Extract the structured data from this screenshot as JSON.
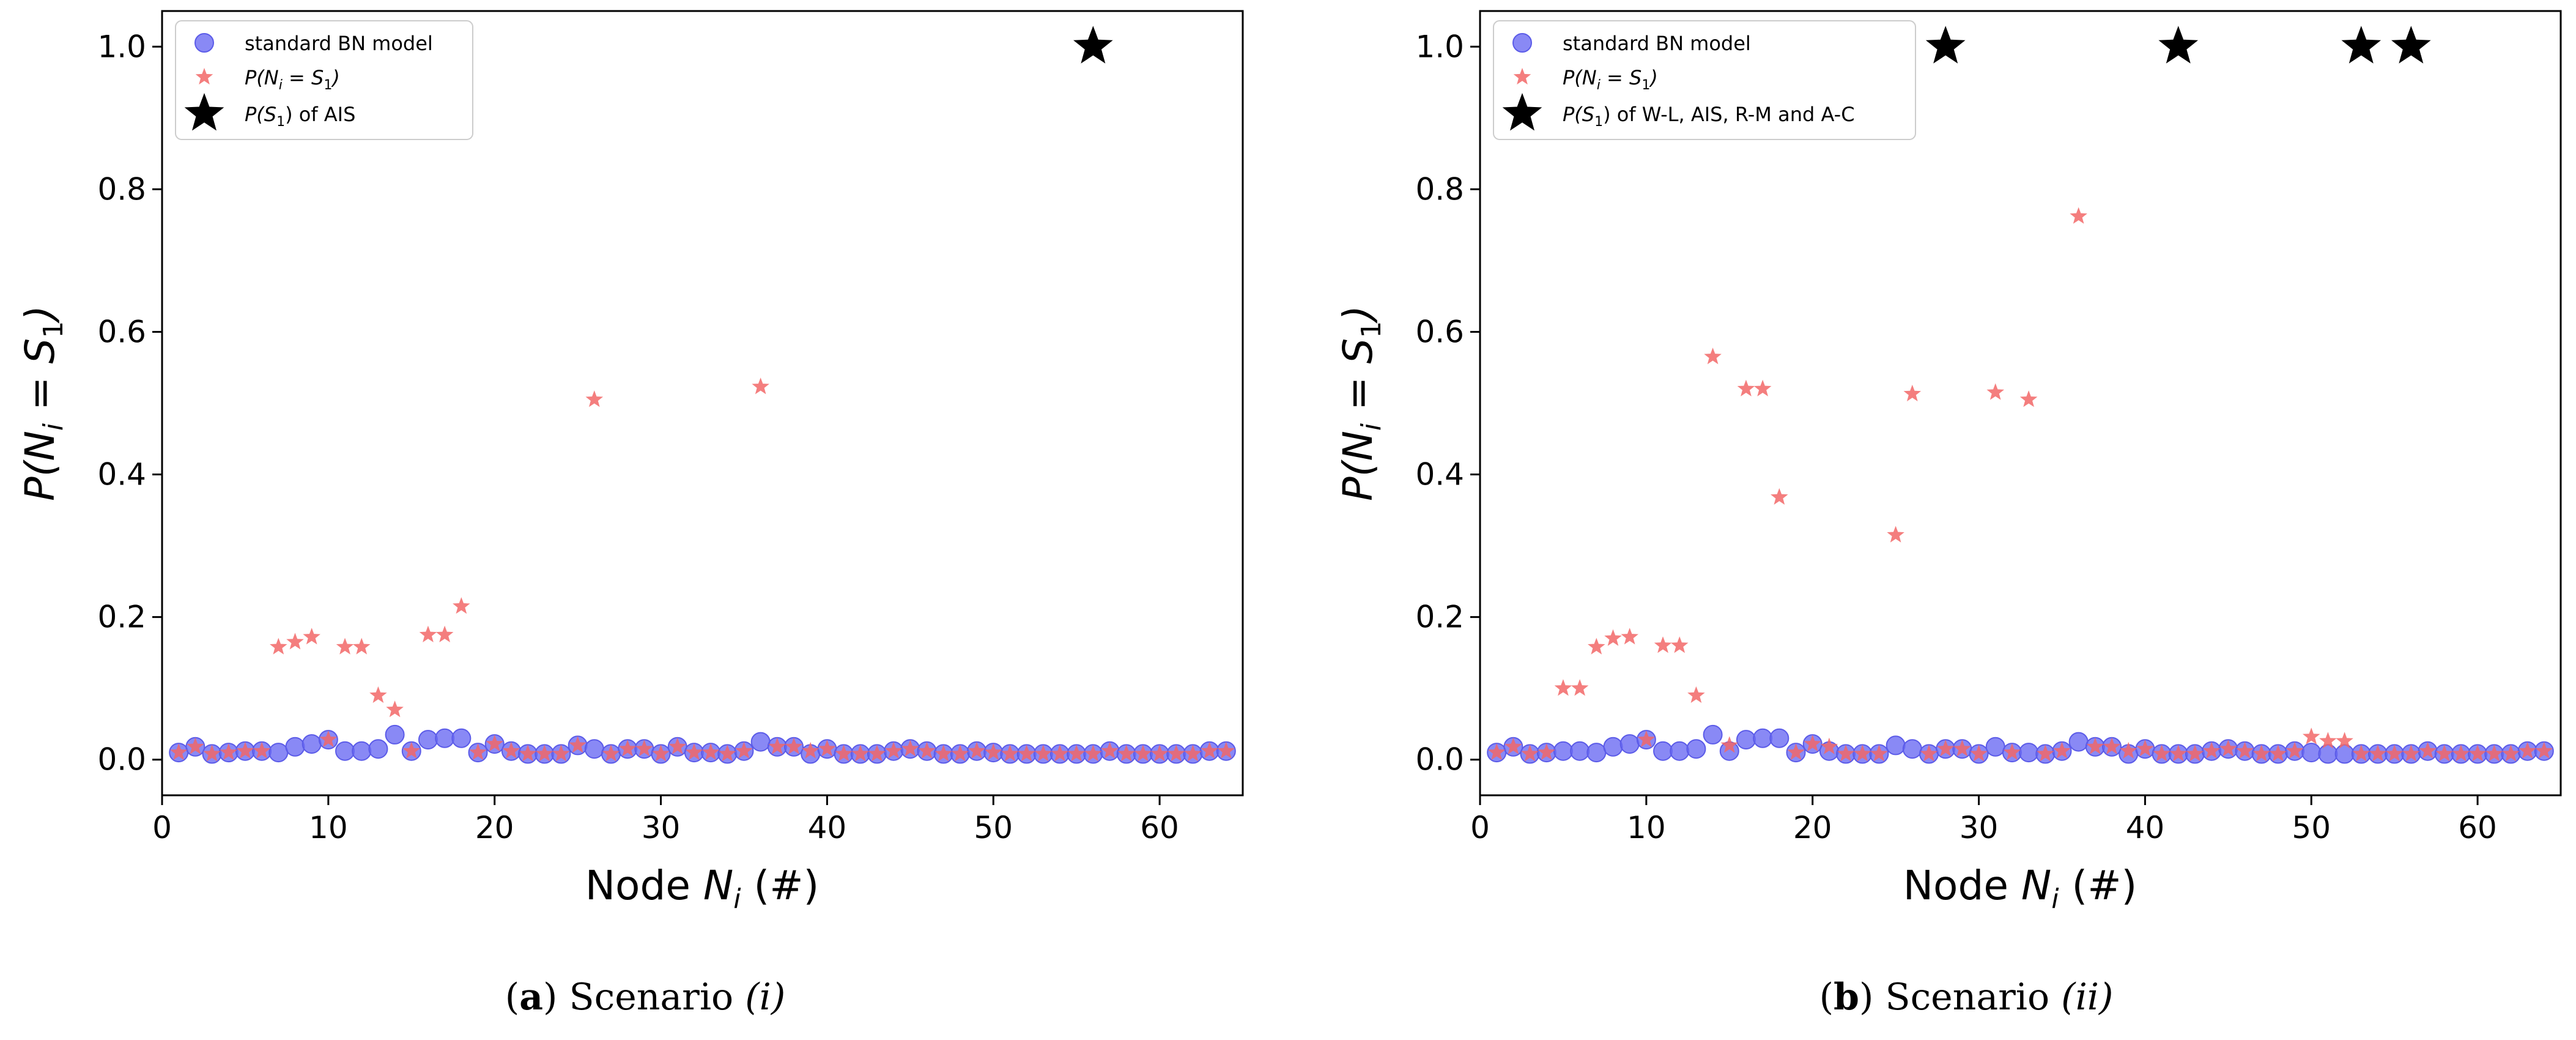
{
  "colors": {
    "blue": "#6b6bf2",
    "blue_edge": "#5b5be8",
    "red": "#f26767",
    "black": "#000000"
  },
  "icons": {
    "circle": "blue-circle-marker",
    "star_small": "red-star-marker",
    "star_big": "black-star-marker"
  },
  "chart_data": [
    {
      "type": "scatter",
      "title": "",
      "xlabel_prefix": "Node ",
      "xlabel_var": "N",
      "xlabel_sub": "i",
      "xlabel_suffix": " (#)",
      "ylabel_prefix": "P(",
      "ylabel_var": "N",
      "ylabel_sub": "i",
      "ylabel_eq": " = ",
      "ylabel_s": "S",
      "ylabel_s_sub": "1",
      "ylabel_close": ")",
      "xlim": [
        0,
        65
      ],
      "ylim": [
        -0.05,
        1.05
      ],
      "xticks": [
        0,
        10,
        20,
        30,
        40,
        50,
        60
      ],
      "xtick_labels": [
        "0",
        "10",
        "20",
        "30",
        "40",
        "50",
        "60"
      ],
      "yticks": [
        0.0,
        0.2,
        0.4,
        0.6,
        0.8,
        1.0
      ],
      "ytick_labels": [
        "0.0",
        "0.2",
        "0.4",
        "0.6",
        "0.8",
        "1.0"
      ],
      "legend_position": "top-left",
      "legend": {
        "entry1": "standard BN model",
        "entry2_prefix": "P(",
        "entry2_var": "N",
        "entry2_sub": "i",
        "entry2_mid": " = ",
        "entry2_s": "S",
        "entry2_s_sub": "1",
        "entry2_close": ")",
        "entry3_prefix": "P(",
        "entry3_s": "S",
        "entry3_s_sub": "1",
        "entry3_rest": ") of AIS"
      },
      "caption": {
        "letter": "a",
        "text": "Scenario ",
        "italic": "(i)"
      },
      "series": [
        {
          "name": "standard BN model",
          "marker": "circle",
          "x": [
            1,
            2,
            3,
            4,
            5,
            6,
            7,
            8,
            9,
            10,
            11,
            12,
            13,
            14,
            15,
            16,
            17,
            18,
            19,
            20,
            21,
            22,
            23,
            24,
            25,
            26,
            27,
            28,
            29,
            30,
            31,
            32,
            33,
            34,
            35,
            36,
            37,
            38,
            39,
            40,
            41,
            42,
            43,
            44,
            45,
            46,
            47,
            48,
            49,
            50,
            51,
            52,
            53,
            54,
            55,
            56,
            57,
            58,
            59,
            60,
            61,
            62,
            63,
            64
          ],
          "y": [
            0.01,
            0.018,
            0.008,
            0.01,
            0.012,
            0.012,
            0.01,
            0.018,
            0.022,
            0.028,
            0.012,
            0.012,
            0.015,
            0.035,
            0.012,
            0.028,
            0.03,
            0.03,
            0.01,
            0.022,
            0.012,
            0.008,
            0.008,
            0.008,
            0.02,
            0.015,
            0.008,
            0.015,
            0.015,
            0.008,
            0.018,
            0.01,
            0.01,
            0.008,
            0.012,
            0.025,
            0.018,
            0.018,
            0.008,
            0.015,
            0.008,
            0.008,
            0.008,
            0.012,
            0.015,
            0.012,
            0.008,
            0.008,
            0.012,
            0.01,
            0.008,
            0.008,
            0.008,
            0.008,
            0.008,
            0.008,
            0.012,
            0.008,
            0.008,
            0.008,
            0.008,
            0.008,
            0.012,
            0.012
          ]
        },
        {
          "name": "P(Ni = S1)",
          "marker": "star",
          "x": [
            1,
            2,
            3,
            4,
            5,
            6,
            7,
            8,
            9,
            10,
            11,
            12,
            13,
            14,
            15,
            16,
            17,
            18,
            19,
            20,
            21,
            22,
            23,
            24,
            25,
            26,
            27,
            28,
            29,
            30,
            31,
            32,
            33,
            34,
            35,
            36,
            37,
            38,
            39,
            40,
            41,
            42,
            43,
            44,
            45,
            46,
            47,
            48,
            49,
            50,
            51,
            52,
            53,
            54,
            55,
            56,
            57,
            58,
            59,
            60,
            61,
            62,
            63,
            64
          ],
          "y": [
            0.01,
            0.018,
            0.008,
            0.01,
            0.012,
            0.012,
            0.158,
            0.165,
            0.172,
            0.028,
            0.158,
            0.158,
            0.09,
            0.07,
            0.012,
            0.175,
            0.175,
            0.215,
            0.01,
            0.022,
            0.012,
            0.008,
            0.008,
            0.008,
            0.02,
            0.505,
            0.008,
            0.015,
            0.015,
            0.008,
            0.018,
            0.01,
            0.01,
            0.008,
            0.012,
            0.523,
            0.018,
            0.018,
            0.012,
            0.015,
            0.008,
            0.008,
            0.008,
            0.012,
            0.015,
            0.012,
            0.008,
            0.008,
            0.012,
            0.01,
            0.008,
            0.008,
            0.008,
            0.008,
            0.008,
            0.008,
            0.012,
            0.008,
            0.008,
            0.008,
            0.008,
            0.008,
            0.012,
            0.012
          ]
        },
        {
          "name": "P(S1) of AIS",
          "marker": "bigstar",
          "x": [
            56
          ],
          "y": [
            1.0
          ]
        }
      ]
    },
    {
      "type": "scatter",
      "title": "",
      "xlabel_prefix": "Node ",
      "xlabel_var": "N",
      "xlabel_sub": "i",
      "xlabel_suffix": " (#)",
      "ylabel_prefix": "P(",
      "ylabel_var": "N",
      "ylabel_sub": "i",
      "ylabel_eq": " = ",
      "ylabel_s": "S",
      "ylabel_s_sub": "1",
      "ylabel_close": ")",
      "xlim": [
        0,
        65
      ],
      "ylim": [
        -0.05,
        1.05
      ],
      "xticks": [
        0,
        10,
        20,
        30,
        40,
        50,
        60
      ],
      "xtick_labels": [
        "0",
        "10",
        "20",
        "30",
        "40",
        "50",
        "60"
      ],
      "yticks": [
        0.0,
        0.2,
        0.4,
        0.6,
        0.8,
        1.0
      ],
      "ytick_labels": [
        "0.0",
        "0.2",
        "0.4",
        "0.6",
        "0.8",
        "1.0"
      ],
      "legend_position": "top-left",
      "legend": {
        "entry1": "standard BN model",
        "entry2_prefix": "P(",
        "entry2_var": "N",
        "entry2_sub": "i",
        "entry2_mid": " = ",
        "entry2_s": "S",
        "entry2_s_sub": "1",
        "entry2_close": ")",
        "entry3_prefix": "P(",
        "entry3_s": "S",
        "entry3_s_sub": "1",
        "entry3_rest": ") of W-L, AIS, R-M and A-C"
      },
      "caption": {
        "letter": "b",
        "text": "Scenario ",
        "italic": "(ii)"
      },
      "series": [
        {
          "name": "standard BN model",
          "marker": "circle",
          "x": [
            1,
            2,
            3,
            4,
            5,
            6,
            7,
            8,
            9,
            10,
            11,
            12,
            13,
            14,
            15,
            16,
            17,
            18,
            19,
            20,
            21,
            22,
            23,
            24,
            25,
            26,
            27,
            28,
            29,
            30,
            31,
            32,
            33,
            34,
            35,
            36,
            37,
            38,
            39,
            40,
            41,
            42,
            43,
            44,
            45,
            46,
            47,
            48,
            49,
            50,
            51,
            52,
            53,
            54,
            55,
            56,
            57,
            58,
            59,
            60,
            61,
            62,
            63,
            64
          ],
          "y": [
            0.01,
            0.018,
            0.008,
            0.01,
            0.012,
            0.012,
            0.01,
            0.018,
            0.022,
            0.028,
            0.012,
            0.012,
            0.015,
            0.035,
            0.012,
            0.028,
            0.03,
            0.03,
            0.01,
            0.022,
            0.012,
            0.008,
            0.008,
            0.008,
            0.02,
            0.015,
            0.008,
            0.015,
            0.015,
            0.008,
            0.018,
            0.01,
            0.01,
            0.008,
            0.012,
            0.025,
            0.018,
            0.018,
            0.008,
            0.015,
            0.008,
            0.008,
            0.008,
            0.012,
            0.015,
            0.012,
            0.008,
            0.008,
            0.012,
            0.01,
            0.008,
            0.008,
            0.008,
            0.008,
            0.008,
            0.008,
            0.012,
            0.008,
            0.008,
            0.008,
            0.008,
            0.008,
            0.012,
            0.012
          ]
        },
        {
          "name": "P(Ni = S1)",
          "marker": "star",
          "x": [
            1,
            2,
            3,
            4,
            5,
            6,
            7,
            8,
            9,
            10,
            11,
            12,
            13,
            14,
            15,
            16,
            17,
            18,
            19,
            20,
            21,
            22,
            23,
            24,
            25,
            26,
            27,
            28,
            29,
            30,
            31,
            32,
            33,
            34,
            35,
            36,
            37,
            38,
            39,
            40,
            41,
            42,
            43,
            44,
            45,
            46,
            47,
            48,
            49,
            50,
            51,
            52,
            53,
            54,
            55,
            56,
            57,
            58,
            59,
            60,
            61,
            62,
            63,
            64
          ],
          "y": [
            0.01,
            0.018,
            0.008,
            0.01,
            0.1,
            0.1,
            0.158,
            0.17,
            0.172,
            0.028,
            0.16,
            0.16,
            0.09,
            0.565,
            0.02,
            0.52,
            0.52,
            0.368,
            0.01,
            0.022,
            0.018,
            0.008,
            0.008,
            0.008,
            0.315,
            0.513,
            0.008,
            0.015,
            0.015,
            0.008,
            0.515,
            0.01,
            0.505,
            0.008,
            0.012,
            0.762,
            0.018,
            0.018,
            0.012,
            0.015,
            0.008,
            0.008,
            0.008,
            0.012,
            0.015,
            0.012,
            0.008,
            0.008,
            0.012,
            0.032,
            0.026,
            0.026,
            0.008,
            0.008,
            0.008,
            0.008,
            0.012,
            0.008,
            0.008,
            0.008,
            0.008,
            0.008,
            0.012,
            0.012
          ]
        },
        {
          "name": "P(S1) of W-L, AIS, R-M and A-C",
          "marker": "bigstar",
          "x": [
            28,
            42,
            53,
            56
          ],
          "y": [
            1.0,
            1.0,
            1.0,
            1.0
          ]
        }
      ]
    }
  ]
}
